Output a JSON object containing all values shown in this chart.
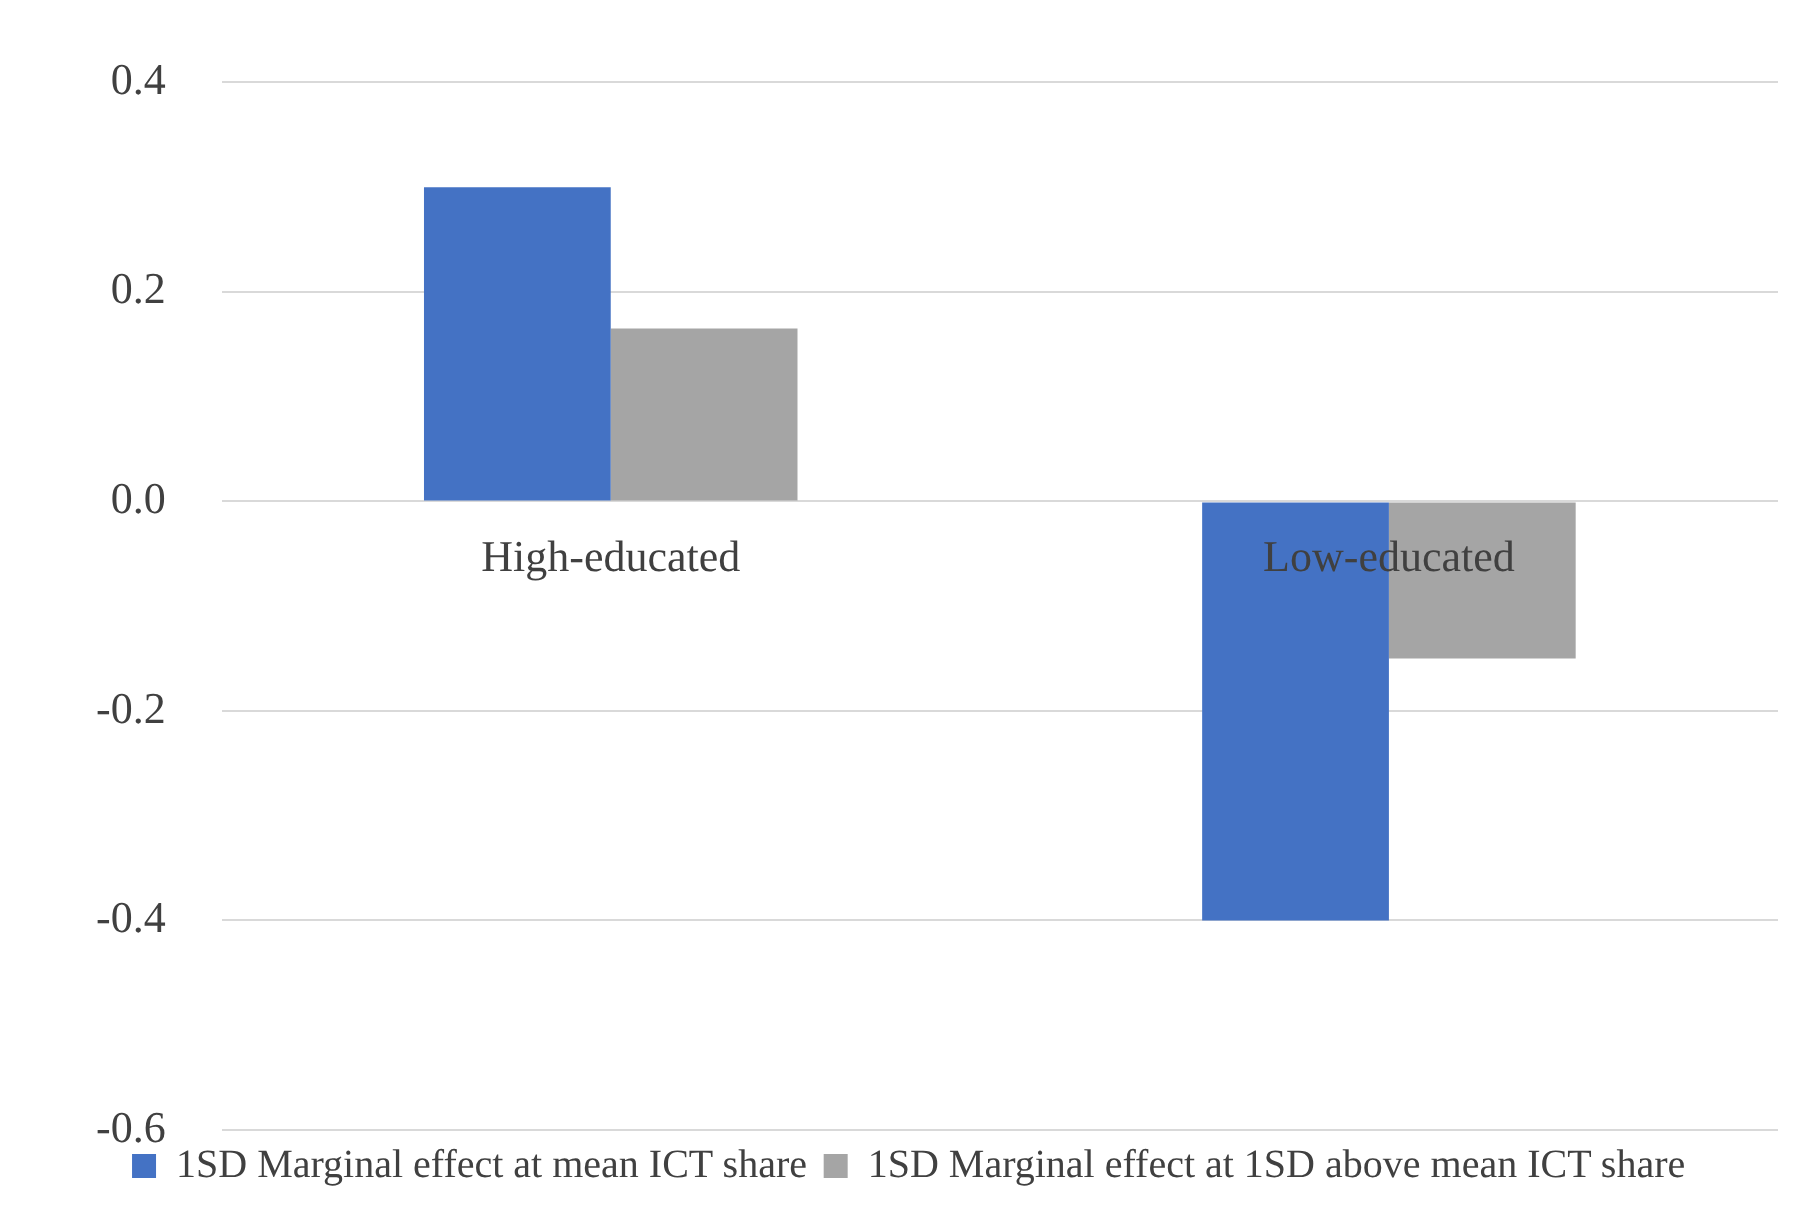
{
  "chart_data": {
    "type": "bar",
    "categories": [
      "High-educated",
      "Low-educated"
    ],
    "series": [
      {
        "name": "1SD Marginal effect at mean ICT share",
        "color": "#4472c4",
        "values": [
          0.3,
          -0.4
        ]
      },
      {
        "name": "1SD Marginal effect at 1SD above mean ICT share",
        "color": "#a5a5a5",
        "values": [
          0.165,
          -0.15
        ]
      }
    ],
    "ylim": [
      -0.6,
      0.4
    ],
    "yticks": [
      {
        "value": -0.6,
        "label": "-0.6"
      },
      {
        "value": -0.4,
        "label": "-0.4"
      },
      {
        "value": -0.2,
        "label": "-0.2"
      },
      {
        "value": 0,
        "label": "0.0"
      },
      {
        "value": 0.2,
        "label": "0.2"
      },
      {
        "value": 0.4,
        "label": "0.4"
      }
    ],
    "grid": "y",
    "legend": "bottom"
  }
}
